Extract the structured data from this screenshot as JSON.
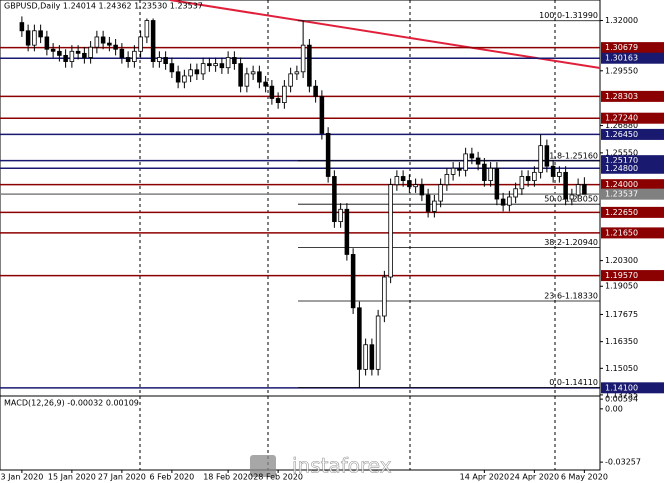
{
  "chart_data": {
    "type": "candlestick",
    "title": "GBPUSD,Daily  1.24014 1.24362 1.23530 1.23537",
    "xlim": [
      -3.5,
      92.5
    ],
    "ylim": [
      1.1375,
      1.33
    ],
    "open": [
      1.319,
      1.315,
      1.308,
      1.315,
      1.312,
      1.306,
      1.305,
      1.303,
      1.3,
      1.305,
      1.304,
      1.302,
      1.307,
      1.312,
      1.309,
      1.308,
      1.306,
      1.302,
      1.3,
      1.305,
      1.312,
      1.32,
      1.3,
      1.302,
      1.299,
      1.295,
      1.29,
      1.293,
      1.296,
      1.294,
      1.299,
      1.298,
      1.299,
      1.297,
      1.302,
      1.299,
      1.288,
      1.294,
      1.295,
      1.29,
      1.288,
      1.282,
      1.28,
      1.288,
      1.294,
      1.295,
      1.308,
      1.288,
      1.283,
      1.265,
      1.244,
      1.222,
      1.228,
      1.206,
      1.18,
      1.15,
      1.162,
      1.15,
      1.176,
      1.195,
      1.24,
      1.244,
      1.242,
      1.239,
      1.24,
      1.235,
      1.227,
      1.232,
      1.24,
      1.245,
      1.248,
      1.247,
      1.255,
      1.253,
      1.25,
      1.242,
      1.248,
      1.233,
      1.23,
      1.234,
      1.238,
      1.244,
      1.242,
      1.246,
      1.259,
      1.249,
      1.244,
      1.246,
      1.233,
      1.235,
      1.24014
    ],
    "high": [
      1.322,
      1.318,
      1.318,
      1.318,
      1.315,
      1.309,
      1.308,
      1.306,
      1.308,
      1.308,
      1.307,
      1.31,
      1.315,
      1.315,
      1.312,
      1.311,
      1.309,
      1.305,
      1.308,
      1.315,
      1.321,
      1.321,
      1.305,
      1.305,
      1.302,
      1.298,
      1.296,
      1.299,
      1.299,
      1.302,
      1.302,
      1.302,
      1.302,
      1.305,
      1.305,
      1.302,
      1.297,
      1.298,
      1.298,
      1.293,
      1.291,
      1.285,
      1.291,
      1.297,
      1.298,
      1.3199,
      1.311,
      1.291,
      1.286,
      1.268,
      1.247,
      1.231,
      1.231,
      1.209,
      1.183,
      1.165,
      1.165,
      1.179,
      1.198,
      1.243,
      1.247,
      1.247,
      1.245,
      1.243,
      1.243,
      1.238,
      1.235,
      1.243,
      1.248,
      1.251,
      1.251,
      1.258,
      1.258,
      1.256,
      1.253,
      1.251,
      1.251,
      1.236,
      1.237,
      1.241,
      1.247,
      1.247,
      1.249,
      1.2645,
      1.262,
      1.252,
      1.249,
      1.249,
      1.238,
      1.243,
      1.24362
    ],
    "low": [
      1.312,
      1.305,
      1.305,
      1.309,
      1.303,
      1.302,
      1.3,
      1.297,
      1.297,
      1.301,
      1.299,
      1.299,
      1.304,
      1.306,
      1.305,
      1.303,
      1.299,
      1.297,
      1.297,
      1.302,
      1.309,
      1.297,
      1.297,
      1.296,
      1.292,
      1.287,
      1.287,
      1.29,
      1.291,
      1.291,
      1.295,
      1.295,
      1.294,
      1.294,
      1.296,
      1.285,
      1.285,
      1.291,
      1.287,
      1.285,
      1.279,
      1.277,
      1.277,
      1.285,
      1.291,
      1.292,
      1.285,
      1.28,
      1.262,
      1.241,
      1.219,
      1.219,
      1.203,
      1.177,
      1.1411,
      1.147,
      1.147,
      1.147,
      1.173,
      1.192,
      1.237,
      1.239,
      1.236,
      1.236,
      1.232,
      1.224,
      1.224,
      1.229,
      1.237,
      1.242,
      1.244,
      1.244,
      1.25,
      1.247,
      1.239,
      1.239,
      1.23,
      1.227,
      1.227,
      1.231,
      1.235,
      1.239,
      1.239,
      1.243,
      1.246,
      1.241,
      1.241,
      1.23,
      1.23,
      1.232,
      1.2353
    ],
    "close": [
      1.315,
      1.308,
      1.315,
      1.312,
      1.306,
      1.305,
      1.303,
      1.3,
      1.305,
      1.304,
      1.302,
      1.307,
      1.312,
      1.309,
      1.308,
      1.306,
      1.302,
      1.3,
      1.305,
      1.312,
      1.32,
      1.3,
      1.302,
      1.299,
      1.295,
      1.29,
      1.293,
      1.296,
      1.294,
      1.299,
      1.298,
      1.299,
      1.297,
      1.302,
      1.299,
      1.288,
      1.294,
      1.295,
      1.29,
      1.288,
      1.282,
      1.28,
      1.288,
      1.294,
      1.295,
      1.308,
      1.288,
      1.283,
      1.265,
      1.244,
      1.222,
      1.228,
      1.206,
      1.18,
      1.15,
      1.162,
      1.15,
      1.176,
      1.195,
      1.24,
      1.244,
      1.242,
      1.239,
      1.24,
      1.235,
      1.227,
      1.232,
      1.24,
      1.245,
      1.248,
      1.247,
      1.255,
      1.253,
      1.25,
      1.242,
      1.248,
      1.233,
      1.23,
      1.234,
      1.238,
      1.244,
      1.242,
      1.246,
      1.259,
      1.249,
      1.244,
      1.246,
      1.233,
      1.235,
      1.24,
      1.23537
    ],
    "xticks": [
      {
        "value": 0,
        "label": "3 Jan 2020"
      },
      {
        "value": 8,
        "label": "15 Jan 2020"
      },
      {
        "value": 16,
        "label": "27 Jan 2020"
      },
      {
        "value": 24,
        "label": "6 Feb 2020"
      },
      {
        "value": 33,
        "label": "18 Feb 2020"
      },
      {
        "value": 41,
        "label": "28 Feb 2020"
      },
      {
        "value": 74,
        "label": "14 Apr 2020"
      },
      {
        "value": 82,
        "label": "24 Apr 2020"
      },
      {
        "value": 90,
        "label": "6 May 2020"
      }
    ],
    "yticks": [
      {
        "value": 1.32,
        "label": "1.32000"
      },
      {
        "value": 1.2955,
        "label": "1.29550"
      },
      {
        "value": 1.2688,
        "label": "1.26880"
      },
      {
        "value": 1.2555,
        "label": "1.25550"
      },
      {
        "value": 1.203,
        "label": "1.20300"
      },
      {
        "value": 1.1905,
        "label": "1.19050"
      },
      {
        "value": 1.17675,
        "label": "1.17675"
      },
      {
        "value": 1.1635,
        "label": "1.16350"
      },
      {
        "value": 1.1505,
        "label": "1.15050"
      },
      {
        "value": 1.13755,
        "label": "1.13755"
      }
    ],
    "levels": [
      {
        "value": 1.30679,
        "label": "1.30679",
        "color": "#8b0000"
      },
      {
        "value": 1.30163,
        "label": "1.30163",
        "color": "#191970"
      },
      {
        "value": 1.28303,
        "label": "1.28303",
        "color": "#8b0000"
      },
      {
        "value": 1.2724,
        "label": "1.27240",
        "color": "#8b0000"
      },
      {
        "value": 1.2645,
        "label": "1.26450",
        "color": "#191970"
      },
      {
        "value": 1.2517,
        "label": "1.25170",
        "color": "#191970"
      },
      {
        "value": 1.248,
        "label": "1.24800",
        "color": "#191970"
      },
      {
        "value": 1.24,
        "label": "1.24000",
        "color": "#8b0000"
      },
      {
        "value": 1.23537,
        "label": "1.23537",
        "color": "#808080"
      },
      {
        "value": 1.2265,
        "label": "1.22650",
        "color": "#8b0000"
      },
      {
        "value": 1.2165,
        "label": "1.21650",
        "color": "#8b0000"
      },
      {
        "value": 1.1957,
        "label": "1.19570",
        "color": "#8b0000"
      },
      {
        "value": 1.141,
        "label": "1.14100",
        "color": "#191970"
      }
    ],
    "fibo": [
      {
        "value": 1.3199,
        "label": "100.0-1.31990"
      },
      {
        "value": 1.2516,
        "label": "61.8-1.25160"
      },
      {
        "value": 1.2305,
        "label": "50.0-1.23050"
      },
      {
        "value": 1.2094,
        "label": "38.2-1.20940"
      },
      {
        "value": 1.1833,
        "label": "23.6-1.18330"
      },
      {
        "value": 1.1411,
        "label": "0.0-1.14110"
      }
    ],
    "macd": {
      "label": "MACD(12,26,9) -0.00032 0.00109",
      "ylim": [
        -0.03739,
        0.00724
      ],
      "yticks": [
        0.00594,
        {
          "value": 0,
          "label": "0.00"
        },
        -0.03257
      ]
    },
    "watermark": "instaforex"
  }
}
